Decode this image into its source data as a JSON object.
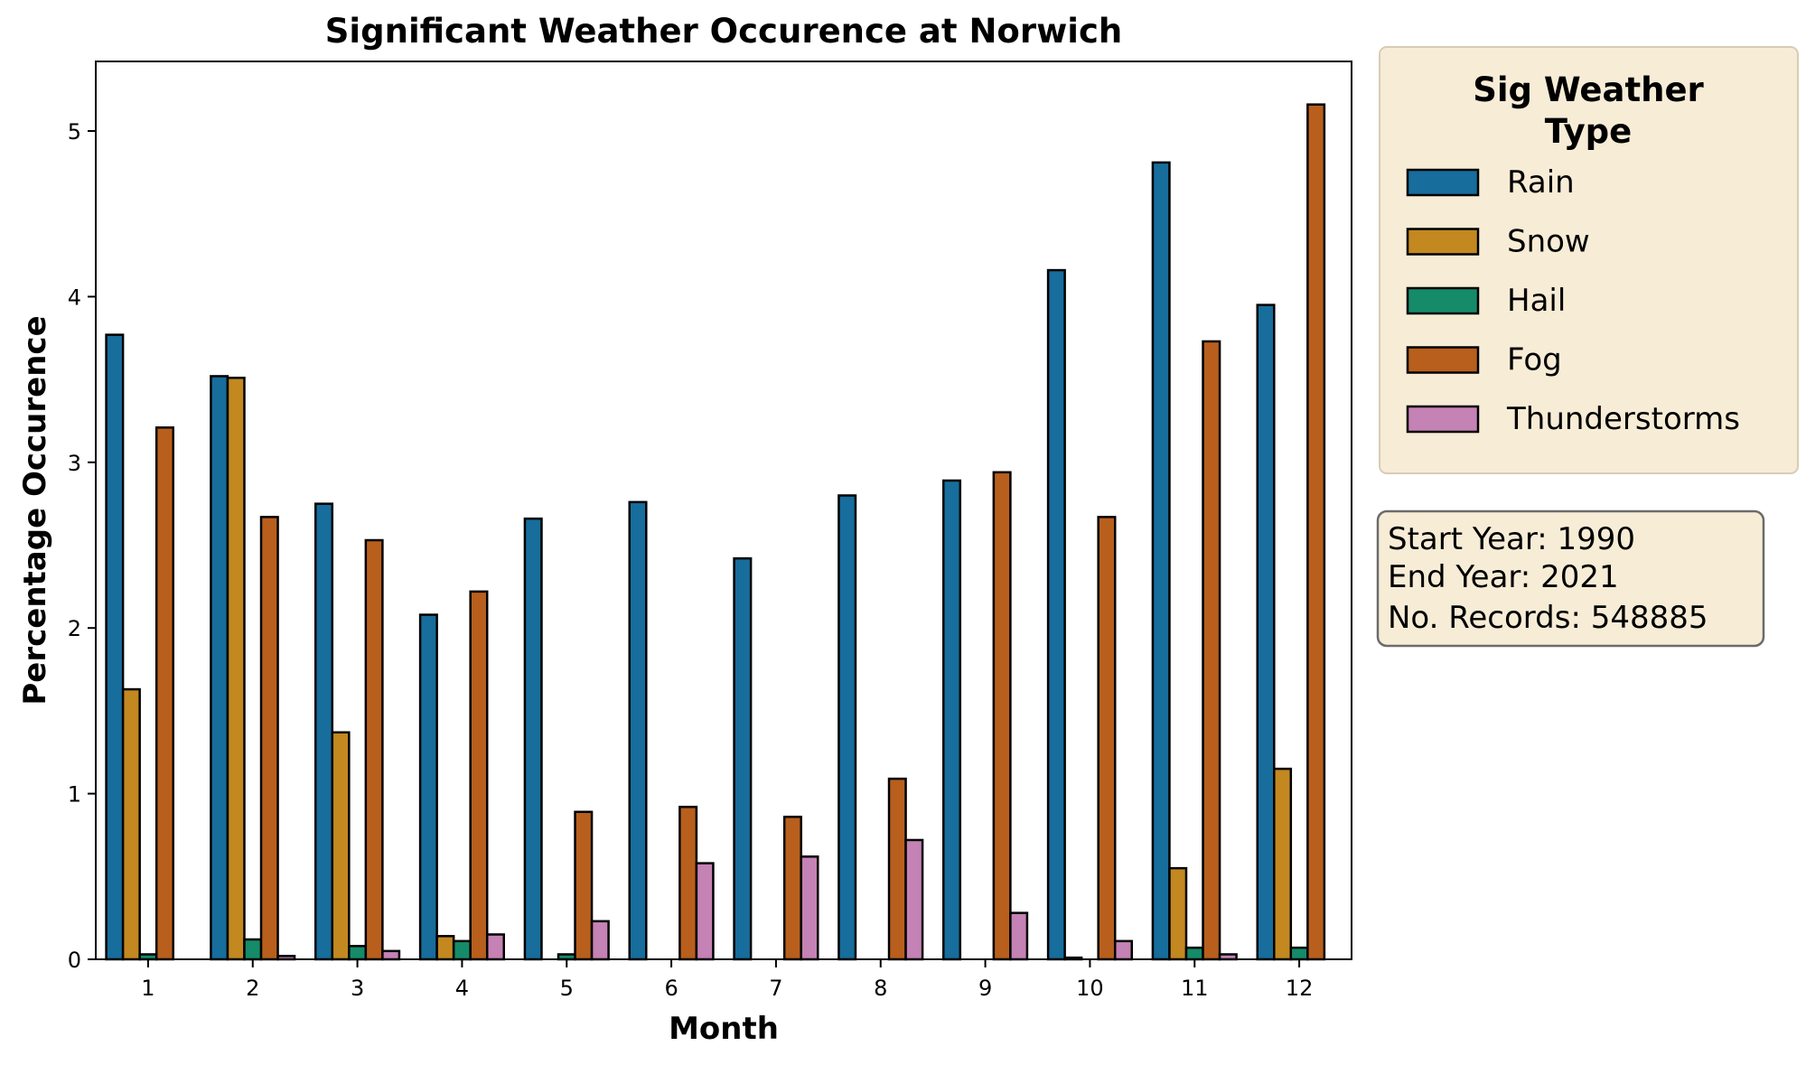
{
  "chart_data": {
    "type": "bar",
    "title": "Significant Weather Occurence at Norwich",
    "xlabel": "Month",
    "ylabel": "Percentage Occurence",
    "categories": [
      "1",
      "2",
      "3",
      "4",
      "5",
      "6",
      "7",
      "8",
      "9",
      "10",
      "11",
      "12"
    ],
    "ylim": [
      0,
      5.42
    ],
    "yticks": [
      "0",
      "1",
      "2",
      "3",
      "4",
      "5"
    ],
    "legend": {
      "title": "Sig Weather Type",
      "title_lines": [
        "Sig Weather",
        "Type"
      ],
      "placement": "outside-right-top"
    },
    "series": [
      {
        "name": "Rain",
        "color": "#176d9c",
        "values": [
          3.77,
          3.52,
          2.75,
          2.08,
          2.66,
          2.76,
          2.42,
          2.8,
          2.89,
          4.16,
          4.81,
          3.95
        ]
      },
      {
        "name": "Snow",
        "color": "#c38820",
        "values": [
          1.63,
          3.51,
          1.37,
          0.14,
          0,
          0,
          0,
          0,
          0,
          0.01,
          0.55,
          1.15
        ]
      },
      {
        "name": "Hail",
        "color": "#158b6a",
        "values": [
          0.03,
          0.12,
          0.08,
          0.11,
          0.03,
          0,
          0,
          0,
          0,
          0,
          0.07,
          0.07
        ]
      },
      {
        "name": "Fog",
        "color": "#b85f1d",
        "values": [
          3.21,
          2.67,
          2.53,
          2.22,
          0.89,
          0.92,
          0.86,
          1.09,
          2.94,
          2.67,
          3.73,
          5.16
        ]
      },
      {
        "name": "Thunderstorms",
        "color": "#c482b5",
        "values": [
          0,
          0.02,
          0.05,
          0.15,
          0.23,
          0.58,
          0.62,
          0.72,
          0.28,
          0.11,
          0.03,
          0
        ]
      }
    ],
    "info_box": [
      "Start Year: 1990",
      "End Year: 2021",
      "No. Records: 548885"
    ]
  }
}
